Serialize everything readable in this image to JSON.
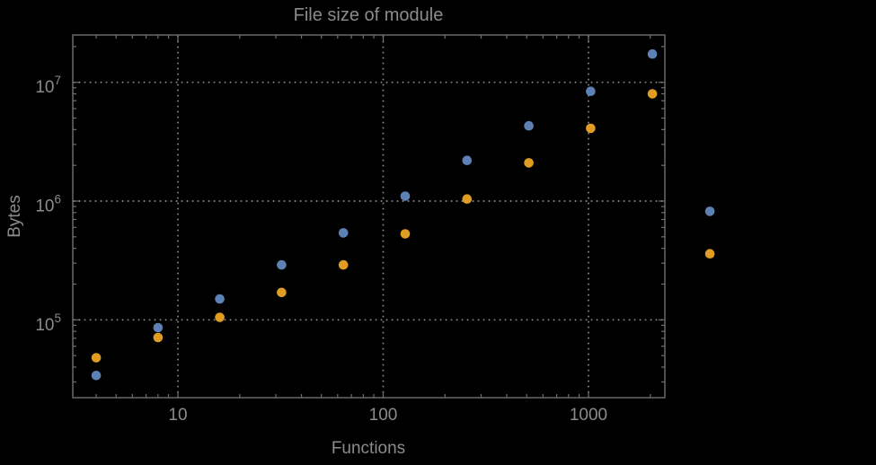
{
  "colors": {
    "background": "#000000",
    "frame": "#707070",
    "grid": "#8c8c8c",
    "text": "#8b8b8b",
    "series_blue": "#5e81b5",
    "series_orange": "#e19c24"
  },
  "chart_data": {
    "type": "scatter",
    "title": "File size of module",
    "xlabel": "Functions",
    "ylabel": "Bytes",
    "x_scale": "log",
    "y_scale": "log",
    "xlim": [
      3.1,
      2350
    ],
    "ylim": [
      22000,
      25000000
    ],
    "grid": {
      "show": true,
      "style": "dotted",
      "x_values": [
        10,
        100,
        1000
      ],
      "y_values": [
        100000,
        1000000,
        10000000
      ]
    },
    "legend": "none",
    "frame": "all-sides-with-inward-ticks",
    "plot_range_clipping": false,
    "x_ticks": [
      {
        "label": "10",
        "value": 10
      },
      {
        "label": "100",
        "value": 100
      },
      {
        "label": "1000",
        "value": 1000
      }
    ],
    "y_ticks": [
      {
        "mantissa": "10",
        "exponent": "5",
        "value": 100000
      },
      {
        "mantissa": "10",
        "exponent": "6",
        "value": 1000000
      },
      {
        "mantissa": "10",
        "exponent": "7",
        "value": 10000000
      }
    ],
    "x": [
      4,
      8,
      16,
      32,
      64,
      128,
      256,
      512,
      1024,
      2048,
      3900
    ],
    "series": [
      {
        "name": "blue",
        "color": "#5e81b5",
        "values": [
          34000,
          86000,
          150000,
          290000,
          540000,
          1100000,
          2200000,
          4300000,
          8400000,
          17300000,
          820000
        ]
      },
      {
        "name": "orange",
        "color": "#e19c24",
        "values": [
          48000,
          71000,
          105000,
          170000,
          290000,
          530000,
          1040000,
          2100000,
          4100000,
          8000000,
          360000
        ]
      }
    ],
    "note": "last x pair rendered outside right frame edge"
  }
}
